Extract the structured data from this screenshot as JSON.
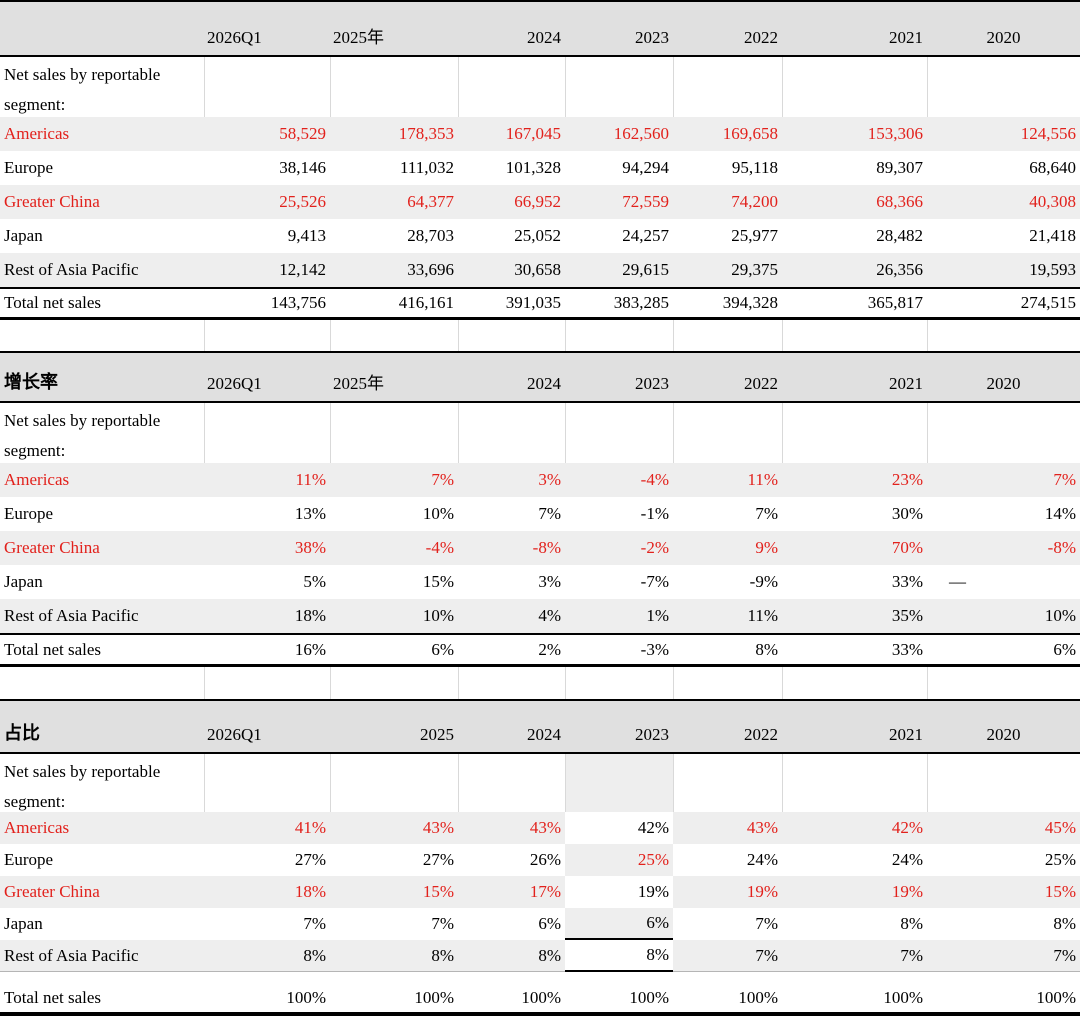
{
  "colors": {
    "accent_red": "#e2211c",
    "zebra_gray": "#eeeeee",
    "header_gray": "#e0e0e0",
    "border_black": "#000000"
  },
  "tables": [
    {
      "key": "net-sales",
      "title": "",
      "section_label": "Net sales by reportable segment:",
      "columns": [
        "2026Q1",
        "2025年",
        "2024",
        "2023",
        "2022",
        "2021",
        "2020"
      ],
      "rows": [
        {
          "label": "Americas",
          "red": true,
          "values": [
            "58,529",
            "178,353",
            "167,045",
            "162,560",
            "169,658",
            "153,306",
            "124,556"
          ]
        },
        {
          "label": "Europe",
          "red": false,
          "values": [
            "38,146",
            "111,032",
            "101,328",
            "94,294",
            "95,118",
            "89,307",
            "68,640"
          ]
        },
        {
          "label": "Greater China",
          "red": true,
          "values": [
            "25,526",
            "64,377",
            "66,952",
            "72,559",
            "74,200",
            "68,366",
            "40,308"
          ]
        },
        {
          "label": "Japan",
          "red": false,
          "values": [
            "9,413",
            "28,703",
            "25,052",
            "24,257",
            "25,977",
            "28,482",
            "21,418"
          ]
        },
        {
          "label": "Rest of Asia Pacific",
          "red": false,
          "values": [
            "12,142",
            "33,696",
            "30,658",
            "29,615",
            "29,375",
            "26,356",
            "19,593"
          ]
        }
      ],
      "total": {
        "label": "Total net sales",
        "values": [
          "143,756",
          "416,161",
          "391,035",
          "383,285",
          "394,328",
          "365,817",
          "274,515"
        ]
      }
    },
    {
      "key": "growth-rate",
      "title": "增长率",
      "section_label": "Net sales by reportable segment:",
      "columns": [
        "2026Q1",
        "2025年",
        "2024",
        "2023",
        "2022",
        "2021",
        "2020"
      ],
      "rows": [
        {
          "label": "Americas",
          "red": true,
          "values": [
            "11%",
            "7%",
            "3%",
            "-4%",
            "11%",
            "23%",
            "7%"
          ]
        },
        {
          "label": "Europe",
          "red": false,
          "values": [
            "13%",
            "10%",
            "7%",
            "-1%",
            "7%",
            "30%",
            "14%"
          ]
        },
        {
          "label": "Greater China",
          "red": true,
          "values": [
            "38%",
            "-4%",
            "-8%",
            "-2%",
            "9%",
            "70%",
            "-8%"
          ]
        },
        {
          "label": "Japan",
          "red": false,
          "values": [
            "5%",
            "15%",
            "3%",
            "-7%",
            "-9%",
            "33%",
            "—"
          ]
        },
        {
          "label": "Rest of Asia Pacific",
          "red": false,
          "values": [
            "18%",
            "10%",
            "4%",
            "1%",
            "11%",
            "35%",
            "10%"
          ]
        }
      ],
      "total": {
        "label": "Total net sales",
        "values": [
          "16%",
          "6%",
          "2%",
          "-3%",
          "8%",
          "33%",
          "6%"
        ]
      }
    },
    {
      "key": "share",
      "title": "占比",
      "section_label": "Net sales by reportable segment:",
      "columns": [
        "2026Q1",
        "2025",
        "2024",
        "2023",
        "2022",
        "2021",
        "2020"
      ],
      "highlighted_column_index": 3,
      "rows": [
        {
          "label": "Americas",
          "red": true,
          "highlight_cell_red": false,
          "values": [
            "41%",
            "43%",
            "43%",
            "42%",
            "43%",
            "42%",
            "45%"
          ]
        },
        {
          "label": "Europe",
          "red": false,
          "highlight_cell_red": true,
          "values": [
            "27%",
            "27%",
            "26%",
            "25%",
            "24%",
            "24%",
            "25%"
          ]
        },
        {
          "label": "Greater China",
          "red": true,
          "highlight_cell_red": false,
          "values": [
            "18%",
            "15%",
            "17%",
            "19%",
            "19%",
            "19%",
            "15%"
          ]
        },
        {
          "label": "Japan",
          "red": false,
          "highlight_cell_red": false,
          "values": [
            "7%",
            "7%",
            "6%",
            "6%",
            "7%",
            "8%",
            "8%"
          ]
        },
        {
          "label": "Rest of Asia Pacific",
          "red": false,
          "highlight_cell_red": false,
          "values": [
            "8%",
            "8%",
            "8%",
            "8%",
            "7%",
            "7%",
            "7%"
          ]
        }
      ],
      "total": {
        "label": "Total net sales",
        "values": [
          "100%",
          "100%",
          "100%",
          "100%",
          "100%",
          "100%",
          "100%"
        ]
      }
    }
  ]
}
